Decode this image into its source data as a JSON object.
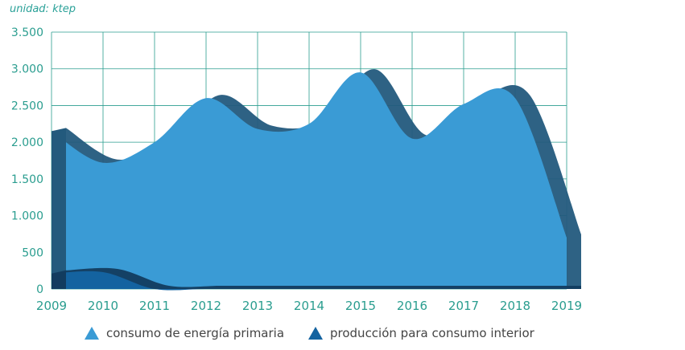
{
  "unit_label": "unidad: ktep",
  "chart_data": {
    "type": "area",
    "categories": [
      "2009",
      "2010",
      "2011",
      "2012",
      "2013",
      "2014",
      "2015",
      "2016",
      "2017",
      "2018",
      "2019"
    ],
    "ylim": [
      0,
      3500
    ],
    "y_ticks": [
      0,
      500,
      1000,
      1500,
      2000,
      2500,
      3000,
      3500
    ],
    "y_tick_labels": [
      "0",
      "500",
      "1.000",
      "1.500",
      "2.000",
      "2.500",
      "3.000",
      "3.500"
    ],
    "series": [
      {
        "name": "consumo de energía primaria",
        "color": "#3a9bd5",
        "shade": "#235a7d",
        "values": [
          2150,
          1720,
          2000,
          2600,
          2180,
          2250,
          2950,
          2050,
          2520,
          2600,
          700
        ]
      },
      {
        "name": "producción para consumo interior",
        "color": "#1463a0",
        "shade": "#123c5f",
        "values": [
          210,
          230,
          0,
          0,
          0,
          0,
          0,
          0,
          0,
          0,
          0
        ]
      }
    ],
    "legend_position": "bottom-center",
    "grid": true
  }
}
